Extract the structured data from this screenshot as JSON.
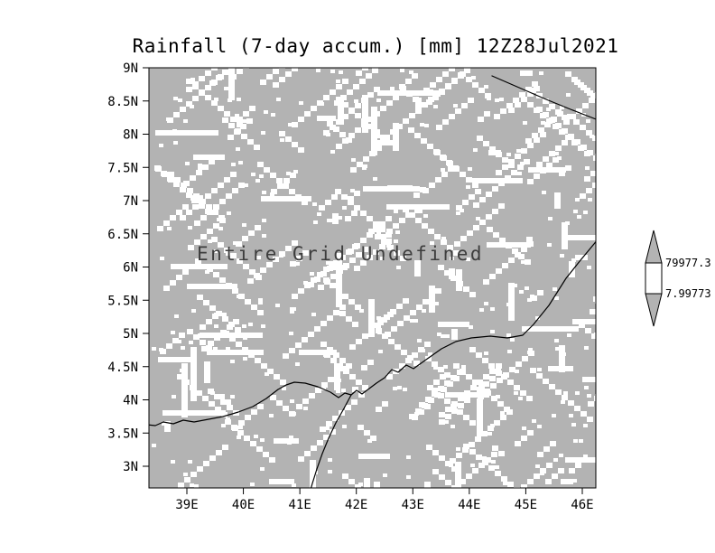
{
  "title": "Rainfall (7-day accum.) [mm] 12Z28Jul2021",
  "map": {
    "overlay_text": "Entire Grid Undefined",
    "fill_color": "#b3b3b3",
    "speckle_color": "#ffffff"
  },
  "colorbar": {
    "labels": [
      "79977.3",
      "7.99773"
    ],
    "segment_colors": [
      "#b3b3b3",
      "#ffffff",
      "#b3b3b3"
    ]
  },
  "chart_data": {
    "type": "heatmap",
    "title": "Rainfall (7-day accum.) [mm] 12Z28Jul2021",
    "variable": "Rainfall (7-day accum.)",
    "units": "mm",
    "valid_time": "12Z28Jul2021",
    "x_ticks": [
      "39E",
      "40E",
      "41E",
      "42E",
      "43E",
      "44E",
      "45E",
      "46E"
    ],
    "y_ticks": [
      "9N",
      "8.5N",
      "8N",
      "7.5N",
      "7N",
      "6.5N",
      "6N",
      "5.5N",
      "5N",
      "4.5N",
      "4N",
      "3.5N",
      "3N"
    ],
    "x_range_deg_east": [
      38.3,
      46.3
    ],
    "y_range_deg_north": [
      2.7,
      9.0
    ],
    "grid": false,
    "legend_position": "right",
    "colorbar_levels": [
      7.99773,
      79977.3
    ],
    "values": null,
    "annotation": "Entire Grid Undefined",
    "grid_status": "all grid values undefined"
  }
}
